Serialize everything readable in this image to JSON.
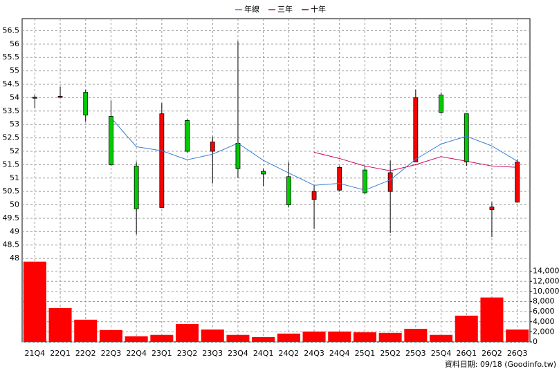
{
  "chart_data": {
    "type": "candlestick",
    "categories": [
      "21Q4",
      "22Q1",
      "22Q2",
      "22Q3",
      "22Q4",
      "23Q1",
      "23Q2",
      "23Q3",
      "23Q4",
      "24Q1",
      "24Q2",
      "24Q3",
      "24Q4",
      "25Q1",
      "25Q2",
      "25Q3",
      "25Q4",
      "26Q1",
      "26Q2",
      "26Q3"
    ],
    "open": [
      53.98,
      54.02,
      54.2,
      53.3,
      51.45,
      49.9,
      53.15,
      52.0,
      52.3,
      51.25,
      51.05,
      50.2,
      50.55,
      51.3,
      50.5,
      51.6,
      54.1,
      53.4,
      49.82,
      50.1
    ],
    "high": [
      54.1,
      54.4,
      54.3,
      53.9,
      51.6,
      53.8,
      53.2,
      52.55,
      56.1,
      51.35,
      51.6,
      50.75,
      51.45,
      51.45,
      51.65,
      54.3,
      54.2,
      53.4,
      50.1,
      51.7
    ],
    "low": [
      53.6,
      54.0,
      53.1,
      51.45,
      48.9,
      49.9,
      51.95,
      50.8,
      51.0,
      50.7,
      49.9,
      49.1,
      50.5,
      50.4,
      48.95,
      51.6,
      53.4,
      51.45,
      48.8,
      50.1
    ],
    "close": [
      54.02,
      54.05,
      53.35,
      51.5,
      49.85,
      53.4,
      52.0,
      52.35,
      51.35,
      51.15,
      50.0,
      50.5,
      51.4,
      50.45,
      51.2,
      54.0,
      53.45,
      51.6,
      49.92,
      51.6
    ],
    "up_color": "#ff0000",
    "down_color": "#00cc00",
    "ylim": [
      47.9,
      56.95
    ],
    "yticks": [
      48,
      48.5,
      49,
      49.5,
      50,
      50.5,
      51,
      51.5,
      52,
      52.5,
      53,
      53.5,
      54,
      54.5,
      55,
      55.5,
      56,
      56.5
    ],
    "grid": true,
    "series": [
      {
        "name": "年線",
        "color": "#3a7fd5",
        "values": [
          null,
          null,
          null,
          53.25,
          52.17,
          52.02,
          51.68,
          51.89,
          52.3,
          51.66,
          51.19,
          50.73,
          50.8,
          50.55,
          50.93,
          51.7,
          52.27,
          52.56,
          52.2,
          51.63
        ]
      },
      {
        "name": "三年",
        "color": "#d0005a",
        "values": [
          null,
          null,
          null,
          null,
          null,
          null,
          null,
          null,
          null,
          null,
          null,
          51.96,
          51.73,
          51.45,
          51.27,
          51.5,
          51.8,
          51.63,
          51.45,
          51.4
        ]
      },
      {
        "name": "十年",
        "color": "#800030",
        "values": [
          null,
          null,
          null,
          null,
          null,
          null,
          null,
          null,
          null,
          null,
          null,
          null,
          null,
          null,
          null,
          null,
          null,
          null,
          null,
          null
        ]
      }
    ],
    "volume": {
      "type": "bar",
      "color": "#ff0000",
      "values": [
        15900,
        6700,
        4400,
        2350,
        1100,
        1400,
        3550,
        2450,
        1400,
        950,
        1650,
        2050,
        2050,
        1900,
        1800,
        2600,
        1400,
        5200,
        8800,
        2450
      ],
      "ylim": [
        0,
        16000
      ],
      "yticks": [
        0,
        {
          "value": 2000,
          "label": "2,000"
        },
        {
          "value": 4000,
          "label": "4,000"
        },
        {
          "value": 6000,
          "label": "6,000"
        },
        {
          "value": 8000,
          "label": "8,000"
        },
        {
          "value": 10000,
          "label": "10,000"
        },
        {
          "value": 12000,
          "label": "12,000"
        },
        {
          "value": 14000,
          "label": "14,000"
        }
      ]
    },
    "footer": "資料日期: 09/18 (Goodinfo.tw)"
  }
}
